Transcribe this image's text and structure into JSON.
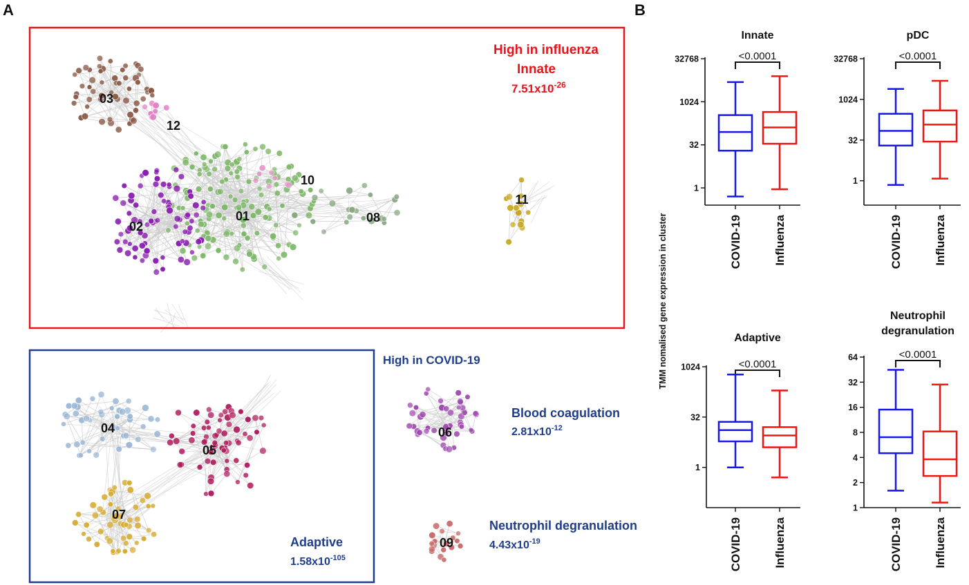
{
  "panel_a": {
    "label": "A",
    "influenza_box": {
      "heading": "High in influenza",
      "category": "Innate",
      "pvalue_base": "7.51x10",
      "pvalue_exp": "-26"
    },
    "covid_heading": "High in COVID-19",
    "adaptive": {
      "category": "Adaptive",
      "pvalue_base": "1.58x10",
      "pvalue_exp": "-105"
    },
    "blood": {
      "category": "Blood coagulation",
      "pvalue_base": "2.81x10",
      "pvalue_exp": "-12"
    },
    "neutro": {
      "category": "Neutrophil degranulation",
      "pvalue_base": "4.43x10",
      "pvalue_exp": "-19"
    },
    "clusters": [
      {
        "id": "01",
        "color": "#7fb86a"
      },
      {
        "id": "02",
        "color": "#8a1fb0"
      },
      {
        "id": "03",
        "color": "#8a5a46"
      },
      {
        "id": "04",
        "color": "#9db8d6"
      },
      {
        "id": "05",
        "color": "#b01e5e"
      },
      {
        "id": "06",
        "color": "#a04ab0"
      },
      {
        "id": "07",
        "color": "#d7ad36"
      },
      {
        "id": "08",
        "color": "#8aa884"
      },
      {
        "id": "09",
        "color": "#c86e6e"
      },
      {
        "id": "10",
        "color": "#e29bc9"
      },
      {
        "id": "11",
        "color": "#c7a81d"
      },
      {
        "id": "12",
        "color": "#e47fc4"
      }
    ]
  },
  "panel_b": {
    "label": "B",
    "ylabel": "TMM nomalised gene expression in cluster",
    "colors": {
      "covid": "#1515ee",
      "influenza": "#ee1515"
    },
    "chart_data": [
      {
        "type": "boxplot",
        "title": [
          "Innate"
        ],
        "scale": "log2",
        "ylim": [
          0.25,
          32768
        ],
        "yticks": [
          1,
          32,
          1024,
          32768
        ],
        "ytick_labels": [
          "1",
          "32",
          "1024",
          "32768"
        ],
        "categories": [
          "COVID-19",
          "Influenza"
        ],
        "pvalue": "<0.0001",
        "boxes": [
          {
            "name": "COVID-19",
            "min": 0.5,
            "q1": 20,
            "median": 90,
            "q3": 350,
            "max": 5000
          },
          {
            "name": "Influenza",
            "min": 0.9,
            "q1": 35,
            "median": 130,
            "q3": 450,
            "max": 8000
          }
        ]
      },
      {
        "type": "boxplot",
        "title": [
          "pDC"
        ],
        "scale": "log2",
        "ylim": [
          0.125,
          32768
        ],
        "yticks": [
          1,
          32,
          1024,
          32768
        ],
        "ytick_labels": [
          "1",
          "32",
          "1024",
          "32768"
        ],
        "categories": [
          "COVID-19",
          "Influenza"
        ],
        "pvalue": "<0.0001",
        "boxes": [
          {
            "name": "COVID-19",
            "min": 0.7,
            "q1": 20,
            "median": 70,
            "q3": 300,
            "max": 2500
          },
          {
            "name": "Influenza",
            "min": 1.2,
            "q1": 28,
            "median": 120,
            "q3": 400,
            "max": 5000
          }
        ]
      },
      {
        "type": "boxplot",
        "title": [
          "Adaptive"
        ],
        "scale": "log2",
        "ylim": [
          0.0625,
          1024
        ],
        "yticks": [
          1,
          32,
          1024
        ],
        "ytick_labels": [
          "1",
          "32",
          "1024"
        ],
        "categories": [
          "COVID-19",
          "Influenza"
        ],
        "pvalue": "<0.0001",
        "boxes": [
          {
            "name": "COVID-19",
            "min": 1,
            "q1": 6,
            "median": 13,
            "q3": 23,
            "max": 600
          },
          {
            "name": "Influenza",
            "min": 0.5,
            "q1": 4,
            "median": 9,
            "q3": 16,
            "max": 200
          }
        ]
      },
      {
        "type": "boxplot",
        "title": [
          "Neutrophil",
          "degranulation"
        ],
        "scale": "log2",
        "ylim": [
          1,
          64
        ],
        "yticks": [
          1,
          2,
          4,
          8,
          16,
          32,
          64
        ],
        "ytick_labels": [
          "1",
          "2",
          "4",
          "8",
          "16",
          "32",
          "64"
        ],
        "categories": [
          "COVID-19",
          "Influenza"
        ],
        "pvalue": "<0.0001",
        "boxes": [
          {
            "name": "COVID-19",
            "min": 1.6,
            "q1": 4.5,
            "median": 7,
            "q3": 15,
            "max": 45
          },
          {
            "name": "Influenza",
            "min": 1.15,
            "q1": 2.4,
            "median": 3.8,
            "q3": 8.2,
            "max": 30
          }
        ]
      }
    ]
  }
}
